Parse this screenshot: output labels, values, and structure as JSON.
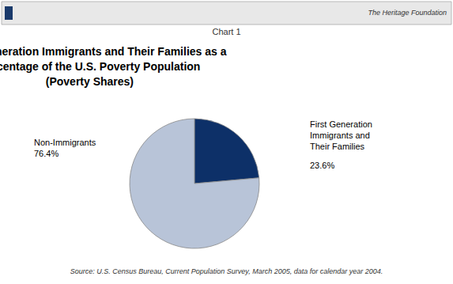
{
  "chart_data": {
    "type": "pie",
    "title": "First-Generation Immigrants and Their Families as a\nPercentage of the U.S. Poverty Population\n(Poverty Shares)",
    "categories": [
      "First Generation\nImmigrants and\nTheir Families",
      "Non-Immigrants"
    ],
    "values": [
      23.6,
      76.4
    ],
    "value_labels": [
      "23.6%",
      "76.4%"
    ],
    "colors": [
      "#0d3068",
      "#b8c4d8"
    ],
    "data_labels": true,
    "legend": false,
    "annotations": [
      "Chart 1",
      "The Heritage Foundation",
      "Source: U.S. Census Bureau, Current Population Survey, March 2005, data for calendar year 2004."
    ]
  }
}
